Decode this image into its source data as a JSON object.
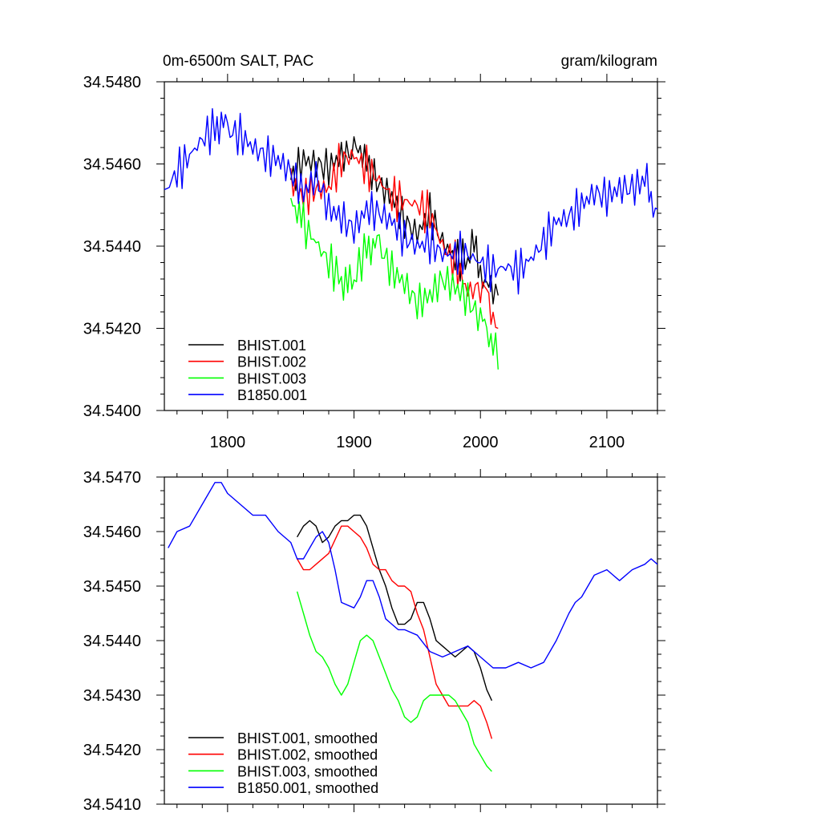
{
  "chart_data": [
    {
      "type": "line",
      "title_left": "0m-6500m SALT, PAC",
      "title_right": "gram/kilogram",
      "xlim": [
        1750,
        2140
      ],
      "ylim": [
        34.54,
        34.548
      ],
      "x_ticks": [
        1800,
        1900,
        2000,
        2100
      ],
      "x_tick_labels": [
        "1800",
        "1900",
        "2000",
        "2100"
      ],
      "y_ticks": [
        34.54,
        34.542,
        34.544,
        34.546,
        34.548
      ],
      "y_tick_labels": [
        "34.5400",
        "34.5420",
        "34.5440",
        "34.5460",
        "34.5480"
      ],
      "legend_position": "bottom-left",
      "series": [
        {
          "name": "BHIST.001",
          "color": "#000000",
          "x": [
            1850,
            1860,
            1870,
            1880,
            1890,
            1900,
            1905,
            1910,
            1920,
            1930,
            1940,
            1950,
            1960,
            1970,
            1980,
            1990,
            1995,
            2000,
            2005,
            2010,
            2014
          ],
          "y": [
            34.5456,
            34.5461,
            34.546,
            34.5459,
            34.5462,
            34.5463,
            34.5465,
            34.546,
            34.5455,
            34.5452,
            34.5446,
            34.5443,
            34.5448,
            34.5441,
            34.5437,
            34.5437,
            34.544,
            34.5435,
            34.5429,
            34.543,
            34.5428
          ]
        },
        {
          "name": "BHIST.002",
          "color": "#ff0000",
          "x": [
            1850,
            1860,
            1870,
            1880,
            1890,
            1900,
            1910,
            1920,
            1930,
            1940,
            1950,
            1960,
            1970,
            1980,
            1990,
            2000,
            2005,
            2010,
            2014
          ],
          "y": [
            34.5456,
            34.5452,
            34.5454,
            34.5454,
            34.5461,
            34.5462,
            34.5459,
            34.5456,
            34.5452,
            34.5451,
            34.545,
            34.5448,
            34.544,
            34.5436,
            34.5429,
            34.543,
            34.5428,
            34.5423,
            34.542
          ]
        },
        {
          "name": "BHIST.003",
          "color": "#00ff00",
          "x": [
            1850,
            1855,
            1860,
            1870,
            1880,
            1890,
            1895,
            1900,
            1910,
            1915,
            1920,
            1930,
            1940,
            1950,
            1960,
            1970,
            1980,
            1990,
            2000,
            2005,
            2010,
            2014
          ],
          "y": [
            34.5451,
            34.545,
            34.5445,
            34.5441,
            34.5436,
            34.5432,
            34.543,
            34.5432,
            34.544,
            34.5441,
            34.544,
            34.5434,
            34.5431,
            34.5426,
            34.5428,
            34.5432,
            34.543,
            34.5427,
            34.5422,
            34.5419,
            34.5418,
            34.541
          ]
        },
        {
          "name": "B1850.001",
          "color": "#0000ff",
          "x": [
            1750,
            1760,
            1770,
            1780,
            1790,
            1795,
            1800,
            1810,
            1820,
            1830,
            1840,
            1850,
            1860,
            1870,
            1880,
            1890,
            1900,
            1910,
            1920,
            1930,
            1940,
            1950,
            1960,
            1970,
            1980,
            1990,
            2000,
            2010,
            2020,
            2030,
            2040,
            2050,
            2060,
            2070,
            2080,
            2090,
            2100,
            2110,
            2120,
            2130,
            2135,
            2140
          ],
          "y": [
            34.5453,
            34.5458,
            34.5462,
            34.5466,
            34.5469,
            34.5471,
            34.5468,
            34.5467,
            34.5464,
            34.5462,
            34.5461,
            34.5458,
            34.5453,
            34.5457,
            34.5449,
            34.5447,
            34.5444,
            34.5449,
            34.5448,
            34.5446,
            34.5442,
            34.544,
            34.5441,
            34.5438,
            34.5438,
            34.5438,
            34.5436,
            34.5434,
            34.5435,
            34.5434,
            34.5437,
            34.5441,
            34.5446,
            34.5447,
            34.545,
            34.5453,
            34.5452,
            34.5454,
            34.5454,
            34.5456,
            34.5452,
            34.5449
          ]
        }
      ]
    },
    {
      "type": "line",
      "xlim": [
        1750,
        2140
      ],
      "ylim": [
        34.541,
        34.547
      ],
      "x_ticks": [
        1800,
        1900,
        2000,
        2100
      ],
      "y_ticks": [
        34.541,
        34.542,
        34.543,
        34.544,
        34.545,
        34.546,
        34.547
      ],
      "y_tick_labels": [
        "34.5410",
        "34.5420",
        "34.5430",
        "34.5440",
        "34.5450",
        "34.5460",
        "34.5470"
      ],
      "legend_position": "bottom-left",
      "series": [
        {
          "name": "BHIST.001, smoothed",
          "color": "#000000",
          "x": [
            1855,
            1860,
            1865,
            1870,
            1875,
            1880,
            1885,
            1890,
            1895,
            1900,
            1905,
            1910,
            1915,
            1920,
            1925,
            1930,
            1935,
            1940,
            1945,
            1950,
            1955,
            1960,
            1965,
            1970,
            1975,
            1980,
            1985,
            1990,
            1995,
            2000,
            2005,
            2009
          ],
          "y": [
            34.5459,
            34.5461,
            34.5462,
            34.5461,
            34.5458,
            34.5459,
            34.5461,
            34.5462,
            34.5462,
            34.5463,
            34.5463,
            34.5461,
            34.5457,
            34.5453,
            34.545,
            34.5446,
            34.5443,
            34.5443,
            34.5444,
            34.5447,
            34.5447,
            34.5444,
            34.544,
            34.5439,
            34.5438,
            34.5437,
            34.5438,
            34.5439,
            34.5438,
            34.5435,
            34.5431,
            34.5429
          ]
        },
        {
          "name": "BHIST.002, smoothed",
          "color": "#ff0000",
          "x": [
            1855,
            1860,
            1865,
            1870,
            1880,
            1890,
            1895,
            1900,
            1905,
            1910,
            1915,
            1920,
            1925,
            1930,
            1935,
            1940,
            1945,
            1950,
            1955,
            1960,
            1965,
            1970,
            1975,
            1980,
            1985,
            1990,
            1995,
            2000,
            2005,
            2009
          ],
          "y": [
            34.5455,
            34.5453,
            34.5453,
            34.5454,
            34.5456,
            34.5461,
            34.5461,
            34.546,
            34.5459,
            34.5457,
            34.5454,
            34.5453,
            34.5453,
            34.5451,
            34.545,
            34.545,
            34.5449,
            34.5445,
            34.5442,
            34.5437,
            34.5432,
            34.543,
            34.5428,
            34.5428,
            34.5428,
            34.5428,
            34.5429,
            34.5428,
            34.5425,
            34.5422
          ]
        },
        {
          "name": "BHIST.003, smoothed",
          "color": "#00ff00",
          "x": [
            1855,
            1860,
            1865,
            1870,
            1875,
            1880,
            1885,
            1890,
            1895,
            1900,
            1905,
            1910,
            1915,
            1920,
            1925,
            1930,
            1935,
            1940,
            1945,
            1950,
            1955,
            1960,
            1965,
            1970,
            1975,
            1980,
            1985,
            1990,
            1995,
            2000,
            2005,
            2009
          ],
          "y": [
            34.5449,
            34.5445,
            34.5441,
            34.5438,
            34.5437,
            34.5435,
            34.5432,
            34.543,
            34.5432,
            34.5436,
            34.544,
            34.5441,
            34.544,
            34.5437,
            34.5434,
            34.5431,
            34.5429,
            34.5426,
            34.5425,
            34.5426,
            34.5429,
            34.543,
            34.543,
            34.543,
            34.543,
            34.5429,
            34.5427,
            34.5425,
            34.5421,
            34.5419,
            34.5417,
            34.5416
          ]
        },
        {
          "name": "B1850.001, smoothed",
          "color": "#0000ff",
          "x": [
            1753,
            1760,
            1770,
            1780,
            1790,
            1795,
            1800,
            1810,
            1820,
            1830,
            1840,
            1850,
            1855,
            1860,
            1865,
            1870,
            1875,
            1880,
            1885,
            1890,
            1900,
            1905,
            1910,
            1915,
            1920,
            1925,
            1930,
            1935,
            1940,
            1950,
            1960,
            1970,
            1980,
            1990,
            2000,
            2010,
            2020,
            2030,
            2040,
            2050,
            2060,
            2070,
            2075,
            2080,
            2090,
            2100,
            2110,
            2120,
            2130,
            2135,
            2140
          ],
          "y": [
            34.5457,
            34.546,
            34.5461,
            34.5465,
            34.5469,
            34.5469,
            34.5467,
            34.5465,
            34.5463,
            34.5463,
            34.546,
            34.5458,
            34.5455,
            34.5455,
            34.5457,
            34.5459,
            34.546,
            34.5458,
            34.5453,
            34.5447,
            34.5446,
            34.5448,
            34.5451,
            34.5451,
            34.5448,
            34.5444,
            34.5443,
            34.5442,
            34.5442,
            34.5441,
            34.5438,
            34.5437,
            34.5438,
            34.5439,
            34.5437,
            34.5435,
            34.5435,
            34.5436,
            34.5435,
            34.5436,
            34.544,
            34.5445,
            34.5447,
            34.5448,
            34.5452,
            34.5453,
            34.5451,
            34.5453,
            34.5454,
            34.5455,
            34.5454
          ]
        }
      ]
    }
  ]
}
